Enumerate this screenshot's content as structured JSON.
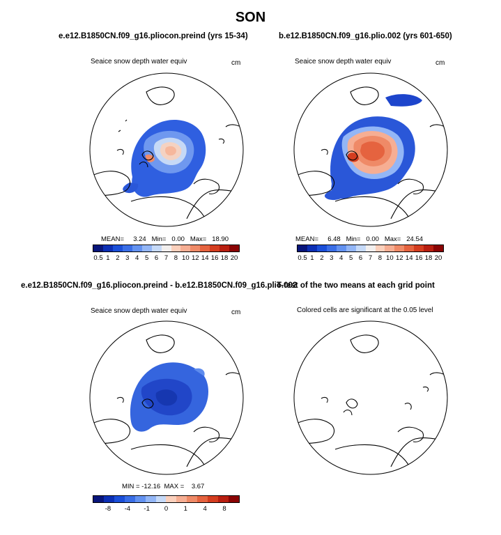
{
  "figure": {
    "season": "SON",
    "panels": [
      {
        "title": "e.e12.B1850CN.f09_g16.pliocon.preind (yrs 15-34)",
        "variable": "Seaice snow depth water equiv",
        "units": "cm",
        "stats": {
          "mean_label": "MEAN=",
          "mean": "3.24",
          "min_label": "Min=",
          "min": "0.00",
          "max_label": "Max=",
          "max": "18.90"
        },
        "colorbar_ticks": [
          "0.5",
          "1",
          "2",
          "3",
          "4",
          "5",
          "6",
          "7",
          "8",
          "10",
          "12",
          "14",
          "16",
          "18",
          "20"
        ]
      },
      {
        "title": "b.e12.B1850CN.f09_g16.plio.002 (yrs 601-650)",
        "variable": "Seaice snow depth water equiv",
        "units": "cm",
        "stats": {
          "mean_label": "MEAN=",
          "mean": "6.48",
          "min_label": "Min=",
          "min": "0.00",
          "max_label": "Max=",
          "max": "24.54"
        },
        "colorbar_ticks": [
          "0.5",
          "1",
          "2",
          "3",
          "4",
          "5",
          "6",
          "7",
          "8",
          "10",
          "12",
          "14",
          "16",
          "18",
          "20"
        ]
      },
      {
        "title": "e.e12.B1850CN.f09_g16.pliocon.preind - b.e12.B1850CN.f09_g16.plio.002",
        "variable": "Seaice snow depth water equiv",
        "units": "cm",
        "stats": {
          "min_label": "MIN =",
          "min": "-12.16",
          "max_label": "MAX =",
          "max": "3.67"
        },
        "colorbar_ticks": [
          "-8",
          "-4",
          "-1",
          "0",
          "1",
          "4",
          "8"
        ]
      },
      {
        "title": "T-test of the two means at each grid point",
        "note": "Colored cells are significant at the 0.05 level"
      }
    ],
    "colors": {
      "abs_scale": [
        "#08157a",
        "#0c2fb4",
        "#1b4fd8",
        "#3a6ee6",
        "#6392f0",
        "#93b6f6",
        "#c6daf8",
        "#f2efee",
        "#fbd0bc",
        "#f6ae93",
        "#ef8a67",
        "#e5633f",
        "#d43d1f",
        "#b81e10",
        "#8a0404"
      ],
      "diff_scale": [
        "#08157a",
        "#0c2fb4",
        "#1b4fd8",
        "#3a6ee6",
        "#6392f0",
        "#93b6f6",
        "#c6daf8",
        "#fbd0bc",
        "#f6ae93",
        "#ef8a67",
        "#e5633f",
        "#d43d1f",
        "#b81e10",
        "#8a0404"
      ]
    }
  }
}
